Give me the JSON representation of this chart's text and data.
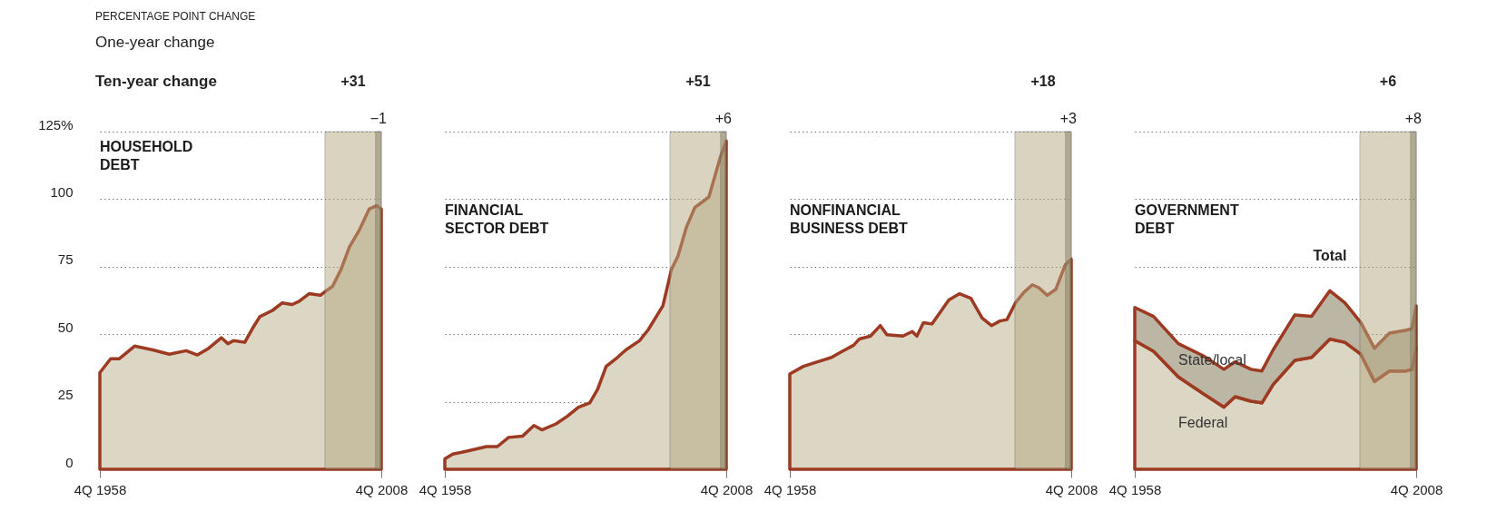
{
  "chart_data": [
    {
      "type": "area",
      "title": "HOUSEHOLD\nDEBT",
      "annotations": [
        "PERCENTAGE POINT CHANGE",
        "One-year change",
        "Ten-year change"
      ],
      "x": [
        "1958-10",
        "1960-09",
        "1962-03",
        "1964-12",
        "1968-03",
        "1971-02",
        "1974-02",
        "1976-02",
        "1978-02",
        "1980-05",
        "1981-07",
        "1982-07",
        "1984-07",
        "1986-01",
        "1987-03",
        "1989-06",
        "1991-03",
        "1992-12",
        "1994-03",
        "1995-12",
        "1997-12",
        "1998-12",
        "2000-02",
        "2001-08",
        "2003-02",
        "2004-11",
        "2006-08",
        "2007-12",
        "2008-10"
      ],
      "series": [
        {
          "color": "#dcd6c5",
          "values": [
            35.8,
            40.9,
            40.9,
            45.6,
            44.2,
            42.6,
            43.9,
            42.3,
            44.8,
            48.7,
            46.5,
            47.6,
            47,
            52.6,
            56.5,
            58.8,
            61.6,
            61,
            62.2,
            65,
            64.4,
            66,
            67.7,
            73.9,
            82.3,
            88.5,
            96.3,
            97.6,
            96.3
          ]
        }
      ],
      "xlim": [
        "1958-10",
        "2008-10"
      ],
      "xticks": [
        {
          "value": "1958-10",
          "label": "4Q 1958"
        },
        {
          "value": "2008-10",
          "label": "4Q 2008"
        }
      ],
      "ylim": [
        0,
        125
      ],
      "yticks": [
        0,
        25,
        50,
        75,
        100,
        {
          "value": 125,
          "label": "125%"
        }
      ],
      "grid": "y",
      "marker": "none",
      "bands": [
        {
          "axis": "x",
          "from": "1998-10",
          "to": "2008-10",
          "label": "+31",
          "color": "#b5a880"
        },
        {
          "axis": "x",
          "from": "2007-10",
          "to": "2008-10",
          "label": "−1",
          "color": "#8a8262"
        }
      ]
    },
    {
      "type": "area",
      "title": "FINANCIAL\nSECTOR DEBT",
      "tick_labels": "x",
      "x": [
        "1958-10",
        "1960-03",
        "1962-09",
        "1966-03",
        "1968-02",
        "1970-02",
        "1972-08",
        "1974-08",
        "1976-01",
        "1978-07",
        "1980-07",
        "1982-07",
        "1984-07",
        "1985-12",
        "1987-06",
        "1989-06",
        "1990-12",
        "1993-05",
        "1994-11",
        "1997-07",
        "1999-01",
        "2000-03",
        "2001-09",
        "2003-03",
        "2005-09",
        "2007-09",
        "2008-10"
      ],
      "series": [
        {
          "color": "#dcd6c5",
          "values": [
            3.9,
            5.6,
            6.7,
            8.4,
            8.4,
            11.8,
            12.3,
            16.2,
            14.6,
            16.8,
            19.6,
            23,
            24.6,
            29.7,
            38.1,
            41.4,
            44.2,
            47.6,
            51.5,
            60.5,
            73.9,
            78.9,
            89.6,
            96.9,
            100.8,
            115.3,
            121.5
          ]
        }
      ],
      "xlim": [
        "1958-10",
        "2008-10"
      ],
      "xticks": [
        {
          "value": "1958-10",
          "label": "4Q 1958"
        },
        {
          "value": "2008-10",
          "label": "4Q 2008"
        }
      ],
      "ylim": [
        0,
        125
      ],
      "yticks": [
        0,
        25,
        50,
        75,
        100,
        125
      ],
      "grid": "y",
      "marker": "none",
      "bands": [
        {
          "axis": "x",
          "from": "1998-10",
          "to": "2008-10",
          "label": "+51",
          "color": "#b5a880"
        },
        {
          "axis": "x",
          "from": "2007-10",
          "to": "2008-10",
          "label": "+6",
          "color": "#8a8262"
        }
      ]
    },
    {
      "type": "area",
      "title": "NONFINANCIAL\nBUSINESS DEBT",
      "tick_labels": "x",
      "x": [
        "1958-10",
        "1961-03",
        "1963-09",
        "1966-03",
        "1968-02",
        "1970-02",
        "1971-02",
        "1973-02",
        "1974-11",
        "1976-01",
        "1978-11",
        "1980-07",
        "1981-05",
        "1982-07",
        "1984-01",
        "1985-07",
        "1987-01",
        "1988-12",
        "1990-12",
        "1992-12",
        "1994-08",
        "1996-02",
        "1997-05",
        "1998-11",
        "2000-05",
        "2001-11",
        "2003-01",
        "2004-07",
        "2006-01",
        "2007-09",
        "2008-10"
      ],
      "series": [
        {
          "color": "#dcd6c5",
          "values": [
            35.3,
            38.1,
            39.8,
            41.4,
            43.7,
            45.9,
            48.2,
            49.3,
            53.2,
            49.8,
            49.3,
            51,
            49.3,
            54.3,
            53.8,
            58.2,
            62.7,
            65,
            63.3,
            56,
            53.2,
            54.9,
            55.4,
            61.6,
            65.5,
            68.3,
            67.2,
            64.4,
            66.6,
            75.6,
            77.8
          ]
        }
      ],
      "xlim": [
        "1958-10",
        "2008-10"
      ],
      "xticks": [
        {
          "value": "1958-10",
          "label": "4Q 1958"
        },
        {
          "value": "2008-10",
          "label": "4Q 2008"
        }
      ],
      "ylim": [
        0,
        125
      ],
      "yticks": [
        0,
        25,
        50,
        75,
        100,
        125
      ],
      "grid": "y",
      "marker": "none",
      "bands": [
        {
          "axis": "x",
          "from": "1998-10",
          "to": "2008-10",
          "label": "+18",
          "color": "#b5a880"
        },
        {
          "axis": "x",
          "from": "2007-10",
          "to": "2008-10",
          "label": "+3",
          "color": "#8a8262"
        }
      ]
    },
    {
      "type": "area",
      "title": "GOVERNMENT\nDEBT",
      "tick_labels": "x",
      "stacked": true,
      "annotations": [
        {
          "text": "Total",
          "x": "1993-06",
          "y": 66.1
        }
      ],
      "x": [
        "1958-10",
        "1962-02",
        "1966-07",
        "1970-12",
        "1974-08",
        "1976-08",
        "1979-06",
        "1981-05",
        "1983-05",
        "1987-03",
        "1990-03",
        "1993-06",
        "1996-02",
        "1998-12",
        "2001-05",
        "2004-01",
        "2007-01",
        "2008-01",
        "2008-10"
      ],
      "series": [
        {
          "name": "Federal",
          "color": "#dcd6c5",
          "values": [
            47.6,
            43.7,
            34.2,
            28,
            23,
            26.9,
            25.2,
            24.6,
            31.4,
            40.3,
            41.4,
            48.2,
            47,
            42.6,
            32.5,
            36.4,
            36.4,
            37,
            44.8
          ]
        },
        {
          "name": "State/local",
          "color": "#bcb6a4",
          "values": [
            12.3,
            12.9,
            12.3,
            14,
            14,
            12.9,
            11.8,
            11.8,
            12.8,
            16.8,
            15.2,
            17.9,
            14.6,
            11.7,
            12.3,
            14,
            15.1,
            15.1,
            15.7
          ]
        }
      ],
      "xlim": [
        "1958-10",
        "2008-10"
      ],
      "xticks": [
        {
          "value": "1958-10",
          "label": "4Q 1958"
        },
        {
          "value": "2008-10",
          "label": "4Q 2008"
        }
      ],
      "ylim": [
        0,
        125
      ],
      "yticks": [
        0,
        25,
        50,
        75,
        100,
        125
      ],
      "grid": "y",
      "marker": "none",
      "bands": [
        {
          "axis": "x",
          "from": "1998-10",
          "to": "2008-10",
          "label": "+6",
          "color": "#b5a880"
        },
        {
          "axis": "x",
          "from": "2007-10",
          "to": "2008-10",
          "label": "+8",
          "color": "#8a8262"
        }
      ]
    }
  ]
}
